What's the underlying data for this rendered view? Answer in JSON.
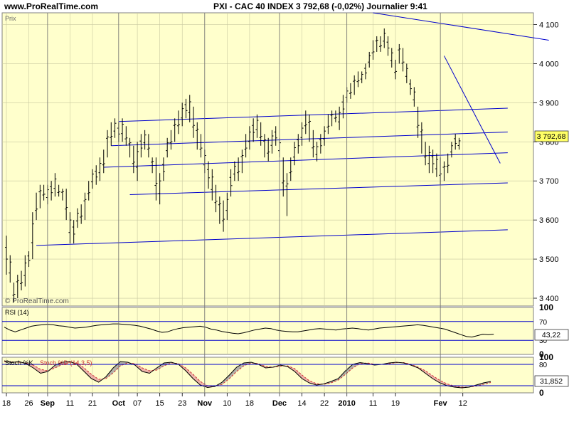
{
  "header": {
    "site": "www.ProRealTime.com",
    "title": "PXI - CAC 40 INDEX   3 792,68 (-0,02%)   Journalier  9:41"
  },
  "colors": {
    "panel_bg": "#FFFFCC",
    "grid": "#C8C8A0",
    "trendline": "#0000CC",
    "rsi_line": "#000000",
    "stoch_k": "#000000",
    "stoch_d": "#CC3333",
    "stoch_fill": "#A0A0A0",
    "stoch_fill_red": "#E8A0A0"
  },
  "chart_data": [
    {
      "type": "ohlc",
      "panel": "price",
      "label": "Prix",
      "watermark": "© ProRealTime.com",
      "ylim": [
        3380,
        4130
      ],
      "yticks": [
        3400,
        3500,
        3600,
        3700,
        3800,
        3900,
        4000,
        4100
      ],
      "ytick_labels": [
        "3 400",
        "3 500",
        "3 600",
        "3 700",
        "3 800",
        "3 900",
        "4 000",
        "4 100"
      ],
      "last_value_label": "3 792,68",
      "last_value": 3792.68,
      "x_tick_labels": [
        "18",
        "26",
        "Sep",
        "11",
        "21",
        "Oct",
        "07",
        "15",
        "23",
        "Nov",
        "10",
        "18",
        "Dec",
        "14",
        "22",
        "2010",
        "11",
        "19",
        "Fev",
        "12"
      ],
      "x_tick_bar_index": [
        0,
        6,
        11,
        17,
        23,
        30,
        35,
        41,
        47,
        53,
        59,
        65,
        73,
        79,
        85,
        91,
        98,
        104,
        116,
        122
      ],
      "month_separators_bar_index": [
        11,
        30,
        53,
        73,
        91,
        116
      ],
      "bars_high_low": [
        [
          3560,
          3460
        ],
        [
          3510,
          3440
        ],
        [
          3440,
          3390
        ],
        [
          3460,
          3400
        ],
        [
          3470,
          3420
        ],
        [
          3510,
          3430
        ],
        [
          3520,
          3480
        ],
        [
          3620,
          3500
        ],
        [
          3670,
          3600
        ],
        [
          3690,
          3630
        ],
        [
          3690,
          3650
        ],
        [
          3690,
          3640
        ],
        [
          3700,
          3650
        ],
        [
          3720,
          3660
        ],
        [
          3690,
          3660
        ],
        [
          3680,
          3650
        ],
        [
          3680,
          3600
        ],
        [
          3620,
          3540
        ],
        [
          3600,
          3540
        ],
        [
          3630,
          3580
        ],
        [
          3640,
          3590
        ],
        [
          3670,
          3600
        ],
        [
          3700,
          3650
        ],
        [
          3730,
          3680
        ],
        [
          3740,
          3690
        ],
        [
          3760,
          3700
        ],
        [
          3780,
          3720
        ],
        [
          3830,
          3760
        ],
        [
          3850,
          3790
        ],
        [
          3860,
          3810
        ],
        [
          3850,
          3800
        ],
        [
          3860,
          3800
        ],
        [
          3840,
          3790
        ],
        [
          3810,
          3760
        ],
        [
          3790,
          3720
        ],
        [
          3800,
          3700
        ],
        [
          3820,
          3760
        ],
        [
          3830,
          3780
        ],
        [
          3820,
          3760
        ],
        [
          3760,
          3720
        ],
        [
          3760,
          3650
        ],
        [
          3720,
          3640
        ],
        [
          3760,
          3700
        ],
        [
          3810,
          3760
        ],
        [
          3830,
          3780
        ],
        [
          3860,
          3800
        ],
        [
          3880,
          3820
        ],
        [
          3900,
          3840
        ],
        [
          3910,
          3860
        ],
        [
          3920,
          3850
        ],
        [
          3890,
          3810
        ],
        [
          3850,
          3780
        ],
        [
          3820,
          3760
        ],
        [
          3780,
          3720
        ],
        [
          3750,
          3680
        ],
        [
          3730,
          3650
        ],
        [
          3690,
          3620
        ],
        [
          3660,
          3590
        ],
        [
          3650,
          3570
        ],
        [
          3670,
          3600
        ],
        [
          3730,
          3660
        ],
        [
          3750,
          3700
        ],
        [
          3760,
          3700
        ],
        [
          3780,
          3720
        ],
        [
          3820,
          3760
        ],
        [
          3840,
          3780
        ],
        [
          3860,
          3800
        ],
        [
          3870,
          3810
        ],
        [
          3850,
          3790
        ],
        [
          3820,
          3760
        ],
        [
          3810,
          3750
        ],
        [
          3830,
          3770
        ],
        [
          3840,
          3790
        ],
        [
          3810,
          3760
        ],
        [
          3760,
          3660
        ],
        [
          3720,
          3610
        ],
        [
          3760,
          3700
        ],
        [
          3800,
          3740
        ],
        [
          3820,
          3770
        ],
        [
          3850,
          3790
        ],
        [
          3880,
          3820
        ],
        [
          3870,
          3800
        ],
        [
          3830,
          3760
        ],
        [
          3800,
          3750
        ],
        [
          3820,
          3770
        ],
        [
          3840,
          3790
        ],
        [
          3870,
          3820
        ],
        [
          3880,
          3840
        ],
        [
          3880,
          3850
        ],
        [
          3890,
          3830
        ],
        [
          3920,
          3860
        ],
        [
          3940,
          3900
        ],
        [
          3950,
          3910
        ],
        [
          3970,
          3920
        ],
        [
          3980,
          3940
        ],
        [
          3980,
          3950
        ],
        [
          4000,
          3960
        ],
        [
          4030,
          3990
        ],
        [
          4060,
          4010
        ],
        [
          4070,
          4030
        ],
        [
          4070,
          4030
        ],
        [
          4090,
          4040
        ],
        [
          4070,
          4020
        ],
        [
          4040,
          3990
        ],
        [
          4010,
          3960
        ],
        [
          4050,
          4000
        ],
        [
          4040,
          3980
        ],
        [
          4000,
          3950
        ],
        [
          3960,
          3920
        ],
        [
          3940,
          3890
        ],
        [
          3890,
          3810
        ],
        [
          3850,
          3770
        ],
        [
          3800,
          3740
        ],
        [
          3790,
          3720
        ],
        [
          3780,
          3720
        ],
        [
          3770,
          3710
        ],
        [
          3760,
          3690
        ],
        [
          3750,
          3700
        ],
        [
          3770,
          3720
        ],
        [
          3800,
          3760
        ],
        [
          3820,
          3780
        ],
        [
          3810,
          3780
        ]
      ],
      "trendlines": [
        {
          "from": [
            8,
            3535
          ],
          "to": [
            134,
            3575
          ]
        },
        {
          "from": [
            33,
            3665
          ],
          "to": [
            134,
            3695
          ]
        },
        {
          "from": [
            26,
            3735
          ],
          "to": [
            134,
            3772
          ]
        },
        {
          "from": [
            28,
            3790
          ],
          "to": [
            134,
            3825
          ]
        },
        {
          "from": [
            30,
            3852
          ],
          "to": [
            134,
            3886
          ]
        },
        {
          "from": [
            98,
            4130
          ],
          "to": [
            145,
            4060
          ]
        },
        {
          "from": [
            117,
            4020
          ],
          "to": [
            132,
            3745
          ]
        }
      ]
    },
    {
      "type": "line",
      "panel": "rsi",
      "label": "RSI (14)",
      "ylim": [
        0,
        100
      ],
      "yticks": [
        0,
        30,
        70,
        100
      ],
      "ytick_labels": [
        "0",
        "30",
        "70",
        "100"
      ],
      "levels": [
        30,
        70
      ],
      "last_value_label": "43,22",
      "values": [
        58,
        52,
        48,
        52,
        56,
        60,
        62,
        63,
        64,
        63,
        61,
        60,
        58,
        56,
        57,
        58,
        60,
        62,
        63,
        64,
        65,
        65,
        64,
        63,
        62,
        60,
        57,
        54,
        50,
        47,
        48,
        52,
        55,
        57,
        58,
        59,
        60,
        58,
        54,
        52,
        49,
        47,
        45,
        44,
        46,
        49,
        52,
        54,
        56,
        55,
        52,
        50,
        49,
        48,
        48,
        50,
        52,
        54,
        55,
        54,
        53,
        52,
        54,
        55,
        56,
        55,
        53,
        52,
        54,
        56,
        57,
        58,
        59,
        60,
        61,
        62,
        63,
        62,
        60,
        58,
        56,
        54,
        50,
        46,
        42,
        38,
        37,
        40,
        43,
        42,
        43
      ]
    },
    {
      "type": "line",
      "panel": "stochastic",
      "label": "Stoch %K",
      "label_d": "Stoch %D (14,3,5)",
      "ylim": [
        0,
        100
      ],
      "yticks": [
        0,
        80,
        100
      ],
      "ytick_labels": [
        "0",
        "80",
        "100"
      ],
      "levels": [
        20,
        80
      ],
      "last_value_label": "31,852",
      "series": [
        {
          "name": "Stoch %K",
          "values": [
            90,
            85,
            88,
            82,
            70,
            55,
            60,
            78,
            86,
            88,
            80,
            60,
            40,
            30,
            45,
            70,
            88,
            86,
            78,
            60,
            55,
            70,
            84,
            86,
            80,
            62,
            40,
            22,
            15,
            18,
            30,
            50,
            72,
            84,
            86,
            80,
            70,
            72,
            78,
            74,
            60,
            40,
            28,
            22,
            25,
            32,
            40,
            62,
            80,
            85,
            82,
            78,
            80,
            84,
            86,
            84,
            78,
            70,
            55,
            40,
            28,
            20,
            16,
            14,
            16,
            22,
            28,
            32
          ]
        },
        {
          "name": "Stoch %D (14,3,5)",
          "values": [
            88,
            87,
            86,
            84,
            78,
            66,
            62,
            70,
            80,
            86,
            84,
            70,
            52,
            38,
            40,
            56,
            76,
            84,
            82,
            70,
            62,
            64,
            76,
            84,
            82,
            70,
            52,
            32,
            20,
            18,
            24,
            40,
            60,
            76,
            84,
            82,
            74,
            72,
            75,
            76,
            68,
            50,
            34,
            26,
            24,
            28,
            36,
            52,
            70,
            82,
            84,
            80,
            80,
            82,
            85,
            85,
            80,
            72,
            62,
            48,
            35,
            25,
            19,
            16,
            16,
            19,
            24,
            29
          ]
        }
      ]
    }
  ]
}
